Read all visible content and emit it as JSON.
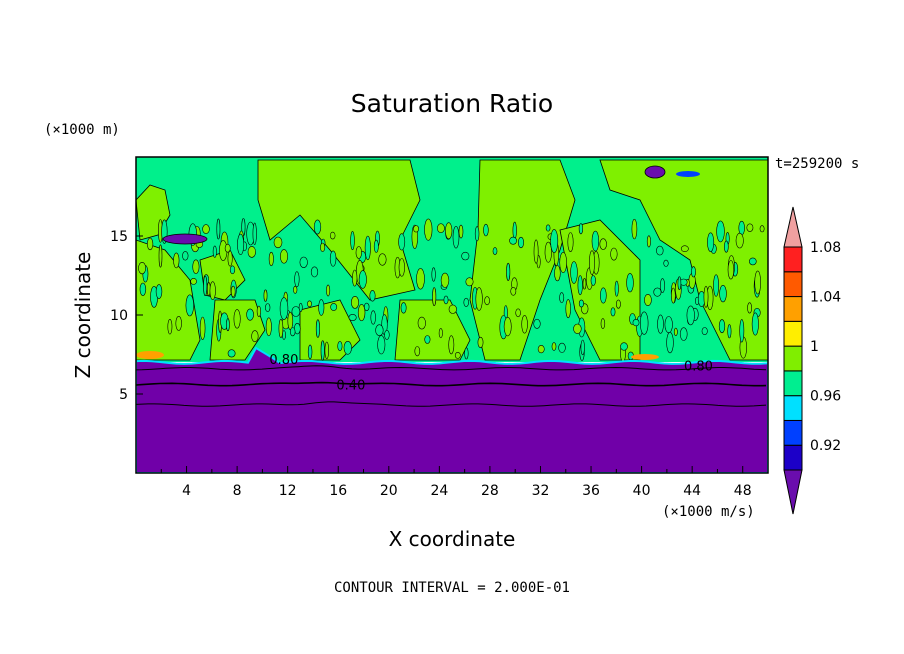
{
  "chart_data": {
    "type": "contour",
    "title": "Saturation Ratio",
    "xlabel": "X coordinate",
    "ylabel": "Z coordinate",
    "x_unit": "(×1000 m/s)",
    "y_unit": "(×1000 m)",
    "time_label": "t=259200 s",
    "contour_interval_label": "CONTOUR INTERVAL = 2.000E-01",
    "xlim": [
      0,
      50
    ],
    "ylim": [
      0,
      20
    ],
    "x_ticks": [
      4,
      8,
      12,
      16,
      20,
      24,
      28,
      32,
      36,
      40,
      44,
      48
    ],
    "y_ticks": [
      5,
      10,
      15
    ],
    "contour_labels": [
      {
        "value": "0.80",
        "x": 11.7,
        "z": 7.2
      },
      {
        "value": "0.40",
        "x": 17.0,
        "z": 5.6
      },
      {
        "value": "0.80",
        "x": 44.5,
        "z": 6.8
      }
    ],
    "colorbar": {
      "levels": [
        0.9,
        0.92,
        0.94,
        0.96,
        0.98,
        1.0,
        1.02,
        1.04,
        1.06,
        1.08,
        1.1
      ],
      "labels": [
        "0.92",
        "0.96",
        "1",
        "1.04",
        "1.08"
      ],
      "colors": [
        "#6a0dad",
        "#1c00c8",
        "#0040ff",
        "#00e0ff",
        "#00ee90",
        "#80ee00",
        "#ffee00",
        "#ffa000",
        "#ff5a00",
        "#ff2020",
        "#f0a0a0"
      ],
      "extend": "both"
    },
    "fields": {
      "upper_colors": [
        "#00f08c",
        "#7ff000"
      ],
      "lower_color": "#7000a8",
      "moist_layer_top_z": 7.0
    }
  }
}
